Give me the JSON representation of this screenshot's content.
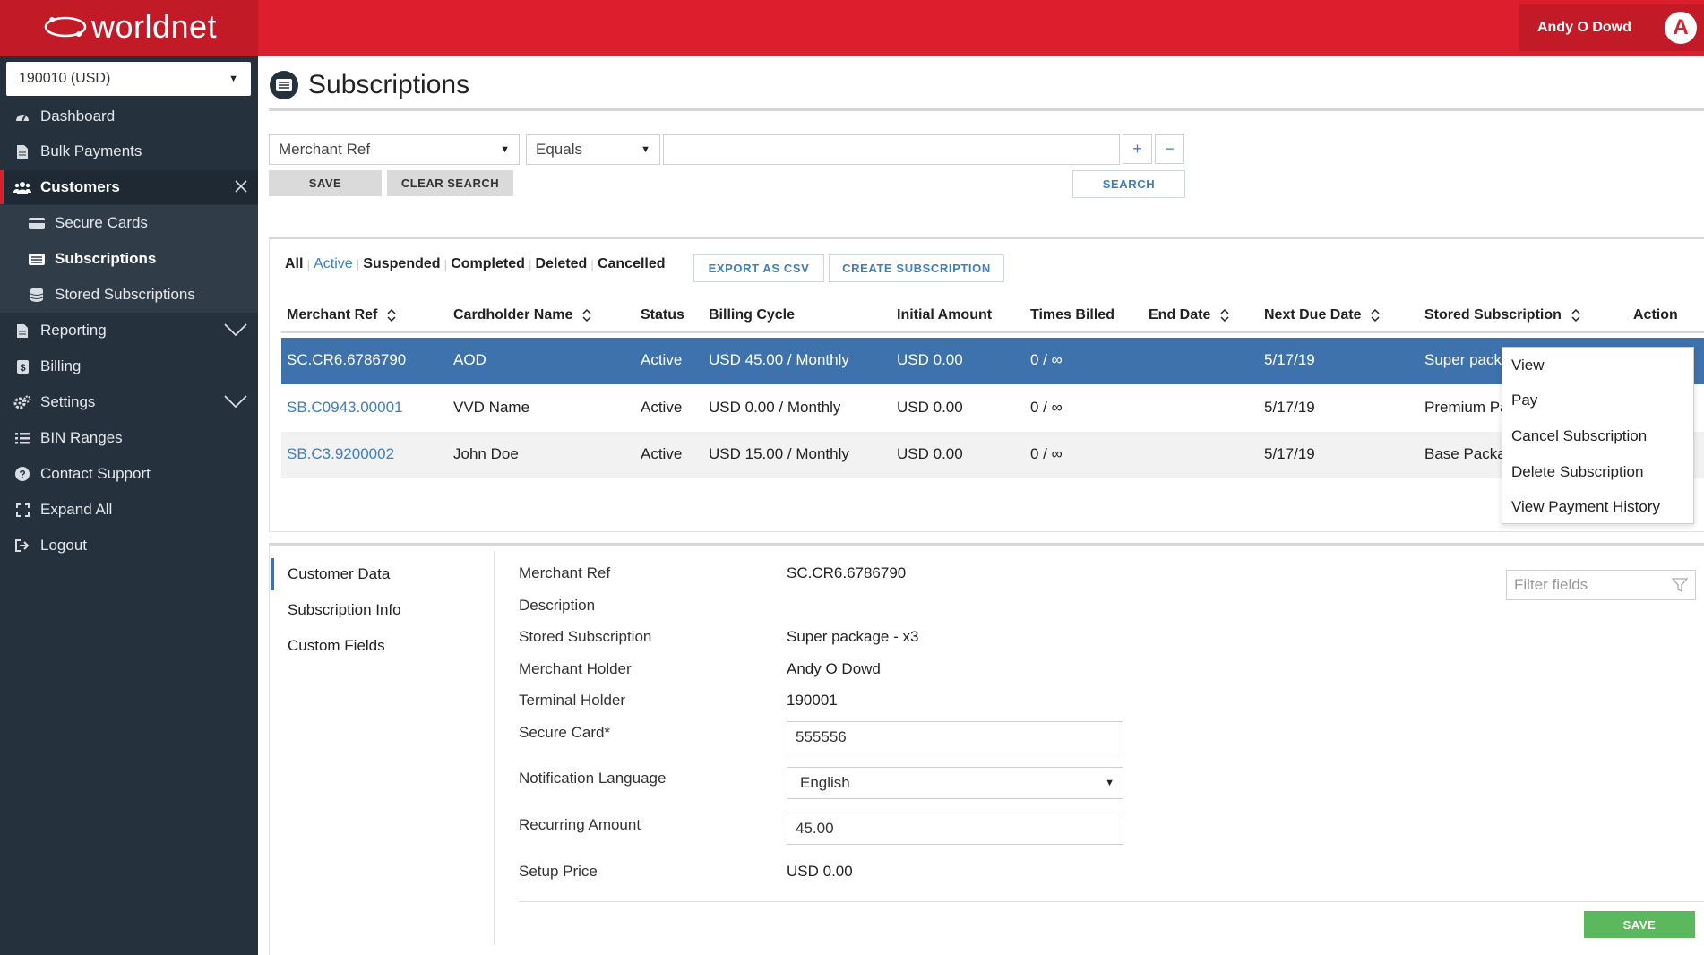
{
  "brand": {
    "name": "worldnet",
    "primary_color": "#dc1e2d",
    "sidebar_color": "#25313d",
    "accent_color": "#3b7fc4"
  },
  "user": {
    "name": "Andy O Dowd",
    "avatar_letter": "A"
  },
  "sidebar": {
    "account_select": "190010 (USD)",
    "items": [
      {
        "label": "Dashboard",
        "icon": "dashboard-icon"
      },
      {
        "label": "Bulk Payments",
        "icon": "document-icon"
      },
      {
        "label": "Customers",
        "icon": "users-icon",
        "active": true
      },
      {
        "label": "Secure Cards",
        "icon": "card-icon"
      },
      {
        "label": "Subscriptions",
        "icon": "list-card-icon",
        "selected": true
      },
      {
        "label": "Stored Subscriptions",
        "icon": "database-icon"
      },
      {
        "label": "Reporting",
        "icon": "document-icon"
      },
      {
        "label": "Billing",
        "icon": "dollar-icon"
      },
      {
        "label": "Settings",
        "icon": "gears-icon"
      },
      {
        "label": "BIN Ranges",
        "icon": "list-icon"
      },
      {
        "label": "Contact Support",
        "icon": "question-icon"
      },
      {
        "label": "Expand All",
        "icon": "expand-icon"
      },
      {
        "label": "Logout",
        "icon": "logout-icon"
      }
    ]
  },
  "page": {
    "title": "Subscriptions"
  },
  "search": {
    "field": "Merchant Ref",
    "operator": "Equals",
    "value": "",
    "add_label": "+",
    "remove_label": "−",
    "save_label": "SAVE",
    "clear_label": "CLEAR SEARCH",
    "search_label": "SEARCH"
  },
  "filters": {
    "tabs": [
      "All",
      "Active",
      "Suspended",
      "Completed",
      "Deleted",
      "Cancelled"
    ],
    "active_tab": "Active",
    "export_label": "EXPORT AS CSV",
    "create_label": "CREATE SUBSCRIPTION"
  },
  "table": {
    "columns": [
      "Merchant Ref",
      "Cardholder Name",
      "Status",
      "Billing Cycle",
      "Initial Amount",
      "Times Billed",
      "End Date",
      "Next Due Date",
      "Stored Subscription",
      "Action"
    ],
    "rows": [
      {
        "ref": "SC.CR6.6786790",
        "name": "AOD",
        "status": "Active",
        "cycle": "USD 45.00 / Monthly",
        "initial": "USD 0.00",
        "billed": "0 / ∞",
        "end": "",
        "next": "5/17/19",
        "stored": "Super packa"
      },
      {
        "ref": "SB.C0943.00001",
        "name": "VVD Name",
        "status": "Active",
        "cycle": "USD 0.00 / Monthly",
        "initial": "USD 0.00",
        "billed": "0 / ∞",
        "end": "",
        "next": "5/17/19",
        "stored": "Premium Pa"
      },
      {
        "ref": "SB.C3.9200002",
        "name": "John Doe",
        "status": "Active",
        "cycle": "USD 15.00 / Monthly",
        "initial": "USD 0.00",
        "billed": "0 / ∞",
        "end": "",
        "next": "5/17/19",
        "stored": "Base Packa"
      }
    ]
  },
  "action_menu": [
    "View",
    "Pay",
    "Cancel Subscription",
    "Delete Subscription",
    "View Payment History"
  ],
  "detail": {
    "tabs": [
      "Customer Data",
      "Subscription Info",
      "Custom Fields"
    ],
    "active_tab": "Customer Data",
    "filter_placeholder": "Filter fields",
    "fields": {
      "merchant_ref": {
        "label": "Merchant Ref",
        "value": "SC.CR6.6786790"
      },
      "description": {
        "label": "Description",
        "value": ""
      },
      "stored_subscription": {
        "label": "Stored Subscription",
        "value": "Super package - x3"
      },
      "merchant_holder": {
        "label": "Merchant Holder",
        "value": "Andy O Dowd"
      },
      "terminal_holder": {
        "label": "Terminal Holder",
        "value": "190001"
      },
      "secure_card": {
        "label": "Secure Card*",
        "value": "555556"
      },
      "notification_language": {
        "label": "Notification Language",
        "value": "English"
      },
      "recurring_amount": {
        "label": "Recurring Amount",
        "value": "45.00"
      },
      "setup_price": {
        "label": "Setup Price",
        "value": "USD 0.00"
      }
    },
    "save_label": "SAVE"
  }
}
